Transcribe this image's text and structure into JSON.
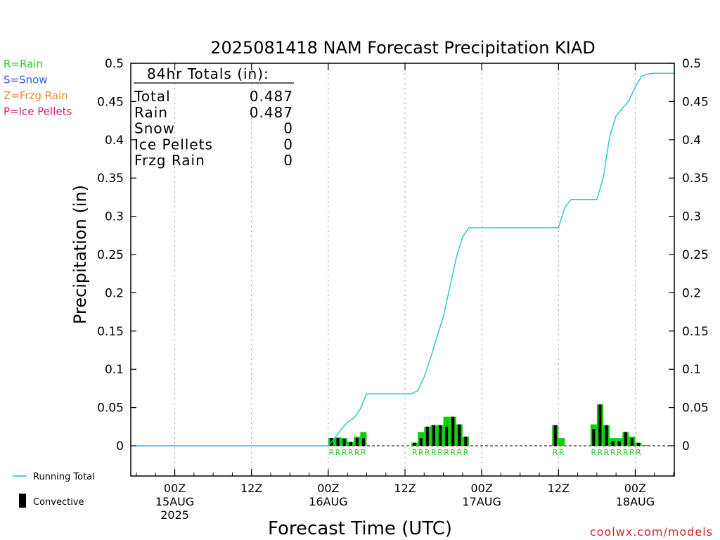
{
  "legend_types": [
    {
      "label": "R=Rain",
      "color": "#22cc22"
    },
    {
      "label": "S=Snow",
      "color": "#3355ee"
    },
    {
      "label": "Z=Frzg Rain",
      "color": "#ee8833"
    },
    {
      "label": "P=Ice Pellets",
      "color": "#dd2277"
    }
  ],
  "legend_bottom": {
    "running_total_label": "Running Total",
    "convective_label": "Convective"
  },
  "totals_box": {
    "title": "84hr Totals (in):",
    "rows": [
      {
        "label": "Total",
        "value": "0.487"
      },
      {
        "label": "Rain",
        "value": "0.487"
      },
      {
        "label": "Snow",
        "value": "0"
      },
      {
        "label": "Ice Pellets",
        "value": "0"
      },
      {
        "label": "Frzg Rain",
        "value": "0"
      }
    ]
  },
  "watermark": "coolwx.com/models",
  "colors": {
    "running_total": "#22c4c8",
    "rain_bar": "#11cc11",
    "convective_bar": "#000000",
    "rain_letter": "#22cc22",
    "grid": "#999999"
  },
  "chart_data": {
    "type": "bar",
    "title": "2025081418 NAM Forecast Precipitation KIAD",
    "xlabel": "Forecast Time (UTC)",
    "ylabel": "Precipitation (in)",
    "ylim": [
      -0.04,
      0.5
    ],
    "yticks": [
      0,
      0.05,
      0.1,
      0.15,
      0.2,
      0.25,
      0.3,
      0.35,
      0.4,
      0.45,
      0.5
    ],
    "ytick_labels": [
      "0",
      "0.05",
      "0.1",
      "0.15",
      "0.2",
      "0.25",
      "0.3",
      "0.35",
      "0.4",
      "0.45",
      "0.5"
    ],
    "x_unit": "forecast hour",
    "xlim": [
      0,
      84
    ],
    "xticks": [
      {
        "hour": 6,
        "label": "00Z",
        "sub": "15AUG",
        "sub2": "2025"
      },
      {
        "hour": 18,
        "label": "12Z",
        "sub": "",
        "sub2": ""
      },
      {
        "hour": 30,
        "label": "00Z",
        "sub": "16AUG",
        "sub2": ""
      },
      {
        "hour": 42,
        "label": "12Z",
        "sub": "",
        "sub2": ""
      },
      {
        "hour": 54,
        "label": "00Z",
        "sub": "17AUG",
        "sub2": ""
      },
      {
        "hour": 66,
        "label": "12Z",
        "sub": "",
        "sub2": ""
      },
      {
        "hour": 78,
        "label": "00Z",
        "sub": "18AUG",
        "sub2": ""
      }
    ],
    "grid": "vertical dotted",
    "hourly_precip": [
      {
        "hour": 31,
        "total": 0.01,
        "convective": 0.01,
        "type": "R"
      },
      {
        "hour": 32,
        "total": 0.011,
        "convective": 0.01,
        "type": "R"
      },
      {
        "hour": 33,
        "total": 0.01,
        "convective": 0.009,
        "type": "R"
      },
      {
        "hour": 34,
        "total": 0.005,
        "convective": 0.005,
        "type": "R"
      },
      {
        "hour": 35,
        "total": 0.012,
        "convective": 0.01,
        "type": "R"
      },
      {
        "hour": 36,
        "total": 0.018,
        "convective": 0.01,
        "type": "R"
      },
      {
        "hour": 44,
        "total": 0.004,
        "convective": 0.004,
        "type": "R"
      },
      {
        "hour": 45,
        "total": 0.018,
        "convective": 0.01,
        "type": "R"
      },
      {
        "hour": 46,
        "total": 0.025,
        "convective": 0.025,
        "type": "R"
      },
      {
        "hour": 47,
        "total": 0.027,
        "convective": 0.027,
        "type": "R"
      },
      {
        "hour": 48,
        "total": 0.027,
        "convective": 0.027,
        "type": "R"
      },
      {
        "hour": 49,
        "total": 0.038,
        "convective": 0.025,
        "type": "R"
      },
      {
        "hour": 50,
        "total": 0.038,
        "convective": 0.038,
        "type": "R"
      },
      {
        "hour": 51,
        "total": 0.028,
        "convective": 0.028,
        "type": "R"
      },
      {
        "hour": 52,
        "total": 0.012,
        "convective": 0.012,
        "type": "R"
      },
      {
        "hour": 66,
        "total": 0.027,
        "convective": 0.027,
        "type": "R"
      },
      {
        "hour": 67,
        "total": 0.01,
        "convective": 0,
        "type": "R"
      },
      {
        "hour": 72,
        "total": 0.028,
        "convective": 0.022,
        "type": "R"
      },
      {
        "hour": 73,
        "total": 0.054,
        "convective": 0.054,
        "type": "R"
      },
      {
        "hour": 74,
        "total": 0.027,
        "convective": 0.027,
        "type": "R"
      },
      {
        "hour": 75,
        "total": 0.01,
        "convective": 0.006,
        "type": "R"
      },
      {
        "hour": 76,
        "total": 0.01,
        "convective": 0.006,
        "type": "R"
      },
      {
        "hour": 77,
        "total": 0.018,
        "convective": 0.018,
        "type": "R"
      },
      {
        "hour": 78,
        "total": 0.012,
        "convective": 0.01,
        "type": "R"
      },
      {
        "hour": 79,
        "total": 0.004,
        "convective": 0.004,
        "type": "R"
      },
      {
        "hour": 80,
        "total": 0.001,
        "convective": 0,
        "type": ""
      }
    ],
    "running_total": {
      "name": "Running Total",
      "x": [
        0,
        30,
        31,
        32,
        33,
        34,
        35,
        36,
        37,
        42,
        43,
        44,
        45,
        46,
        47,
        48,
        49,
        50,
        51,
        52,
        53,
        54,
        57,
        60,
        65,
        66,
        67,
        68,
        71,
        72,
        73,
        74,
        75,
        76,
        77,
        78,
        79,
        80,
        81,
        84
      ],
      "y": [
        0,
        0,
        0.01,
        0.021,
        0.031,
        0.036,
        0.048,
        0.068,
        0.068,
        0.068,
        0.068,
        0.072,
        0.09,
        0.115,
        0.142,
        0.169,
        0.207,
        0.245,
        0.273,
        0.285,
        0.285,
        0.285,
        0.285,
        0.285,
        0.285,
        0.285,
        0.312,
        0.322,
        0.322,
        0.322,
        0.35,
        0.404,
        0.431,
        0.441,
        0.451,
        0.469,
        0.483,
        0.486,
        0.487,
        0.487
      ]
    }
  }
}
